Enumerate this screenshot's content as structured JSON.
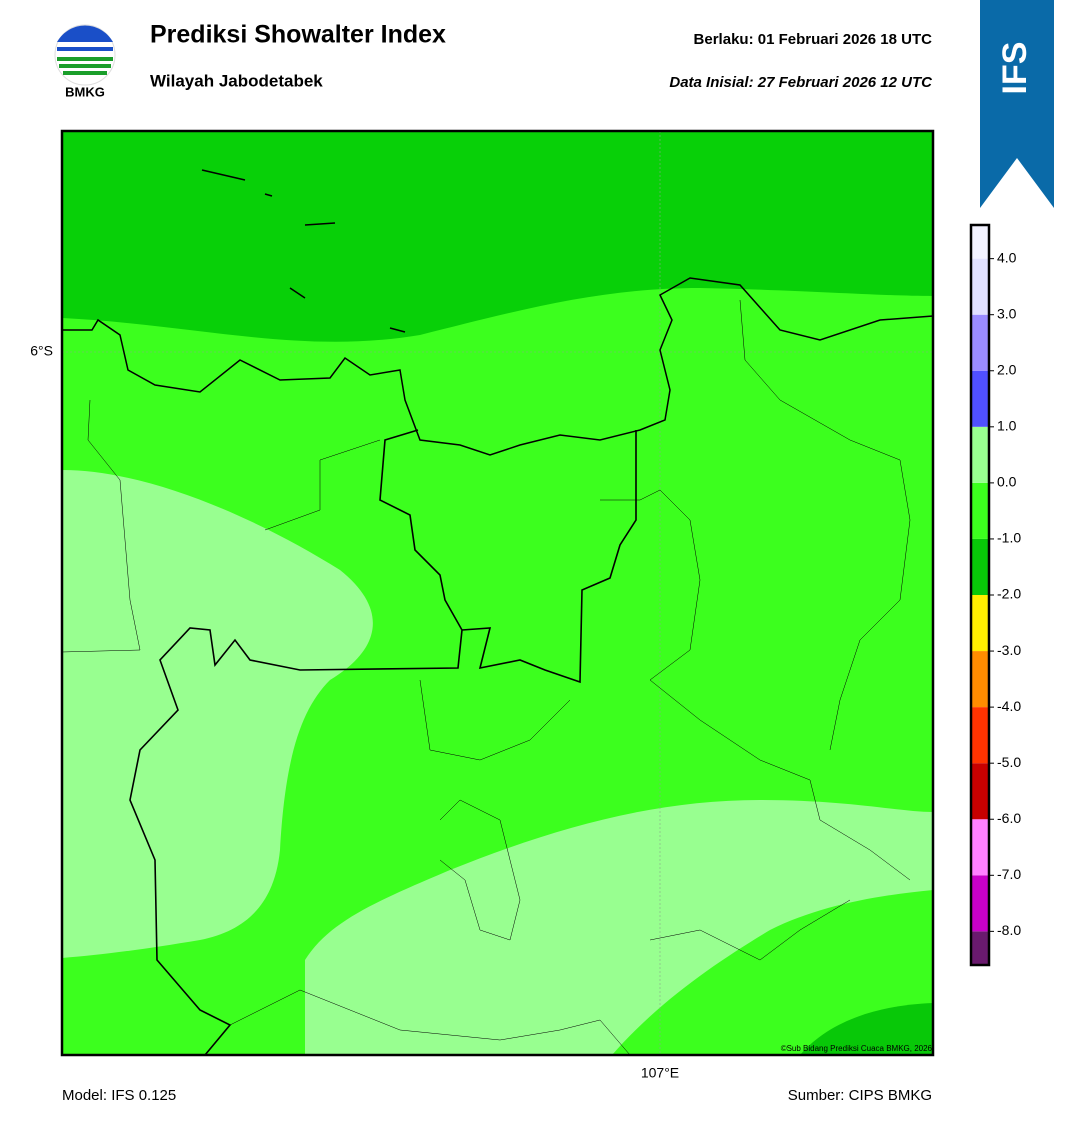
{
  "header": {
    "title": "Prediksi Showalter Index",
    "subtitle": "Wilayah Jabodetabek",
    "valid": "Berlaku:  01 Februari 2026 18 UTC",
    "init": "Data Inisial:  27 Februari 2026 12 UTC",
    "logo": "BMKG",
    "badge": "IFS"
  },
  "map": {
    "lat_label": "6°S",
    "lon_label": "107°E",
    "copyright": "©Sub Bidang Prediksi Cuaca BMKG, 2026"
  },
  "colorbar": {
    "clim": [
      -8.6,
      4.6
    ],
    "levels": [
      -8.6,
      -8,
      -7,
      -6,
      -5,
      -4,
      -3,
      -2,
      -1,
      0,
      1,
      2,
      3,
      4,
      4.6
    ],
    "colors": [
      "#6a1a6e",
      "#c800c8",
      "#ff80ff",
      "#c80000",
      "#ff3300",
      "#ff8c00",
      "#ffee00",
      "#08c808",
      "#3cff1e",
      "#98ff90",
      "#5050ff",
      "#9a8cff",
      "#e0e0ff",
      "#f2f2ff"
    ],
    "ticks": [
      {
        "value": 4,
        "label": "4.0"
      },
      {
        "value": 3,
        "label": "3.0"
      },
      {
        "value": 2,
        "label": "2.0"
      },
      {
        "value": 1,
        "label": "1.0"
      },
      {
        "value": 0,
        "label": "0.0"
      },
      {
        "value": -1,
        "label": "-1.0"
      },
      {
        "value": -2,
        "label": "-2.0"
      },
      {
        "value": -3,
        "label": "-3.0"
      },
      {
        "value": -4,
        "label": "-4.0"
      },
      {
        "value": -5,
        "label": "-5.0"
      },
      {
        "value": -6,
        "label": "-6.0"
      },
      {
        "value": -7,
        "label": "-7.0"
      },
      {
        "value": -8,
        "label": "-8.0"
      }
    ]
  },
  "footer": {
    "model": "Model: IFS 0.125",
    "source": "Sumber: CIPS BMKG"
  }
}
